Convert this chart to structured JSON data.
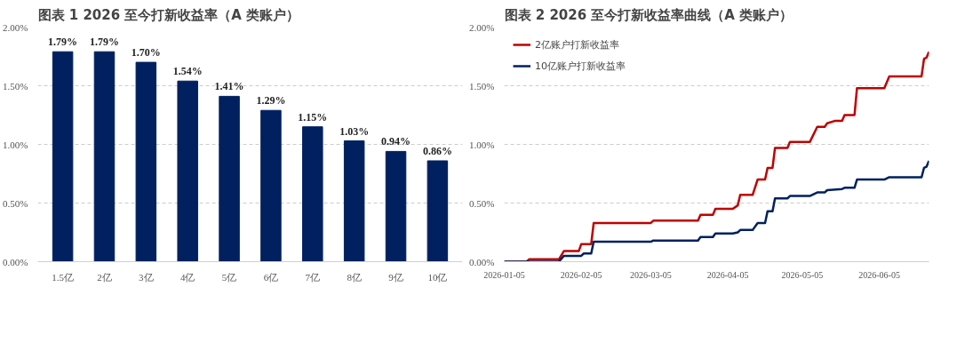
{
  "chart_data": [
    {
      "type": "bar",
      "title": "图表 1 2026 至今打新收益率（A 类账户）",
      "categories": [
        "1.5亿",
        "2亿",
        "3亿",
        "4亿",
        "5亿",
        "6亿",
        "7亿",
        "8亿",
        "9亿",
        "10亿"
      ],
      "color": "#002060",
      "values": [
        1.79,
        1.79,
        1.7,
        1.54,
        1.41,
        1.29,
        1.15,
        1.03,
        0.94,
        0.86
      ],
      "value_labels": [
        "1.79%",
        "1.79%",
        "1.70%",
        "1.54%",
        "1.41%",
        "1.29%",
        "1.15%",
        "1.03%",
        "0.94%",
        "0.86%"
      ],
      "ylim": [
        0,
        2
      ],
      "yticks": [
        {
          "value": 0,
          "label": "0.00%"
        },
        {
          "value": 0.5,
          "label": "0.50%"
        },
        {
          "value": 1,
          "label": "1.00%"
        },
        {
          "value": 1.5,
          "label": "1.50%"
        },
        {
          "value": 2,
          "label": "2.00%"
        }
      ],
      "grid": "y"
    },
    {
      "type": "line",
      "title": "图表 2 2026 至今打新收益率曲线（A 类账户）",
      "legend": "top left",
      "grid": "y",
      "line_style": "solid",
      "xlim": [
        "2026-01-05",
        "2026-06-25"
      ],
      "xticks": [
        "2026-01-05",
        "2026-02-05",
        "2026-03-05",
        "2026-04-05",
        "2026-05-05",
        "2026-06-05"
      ],
      "ylim": [
        0,
        2
      ],
      "yticks": [
        {
          "value": 0,
          "label": "0.00%"
        },
        {
          "value": 0.5,
          "label": "0.50%"
        },
        {
          "value": 1,
          "label": "1.00%"
        },
        {
          "value": 1.5,
          "label": "1.50%"
        },
        {
          "value": 2,
          "label": "2.00%"
        }
      ],
      "series": [
        {
          "name": "2亿账户打新收益率",
          "color": "#c00000",
          "x": [
            "2026-01-05",
            "2026-01-14",
            "2026-01-15",
            "2026-01-27",
            "2026-01-29",
            "2026-02-04",
            "2026-02-05",
            "2026-02-09",
            "2026-02-10",
            "2026-03-05",
            "2026-03-06",
            "2026-03-24",
            "2026-03-25",
            "2026-03-30",
            "2026-03-31",
            "2026-04-07",
            "2026-04-09",
            "2026-04-10",
            "2026-04-15",
            "2026-04-17",
            "2026-04-20",
            "2026-04-21",
            "2026-04-23",
            "2026-04-24",
            "2026-04-29",
            "2026-04-30",
            "2026-05-08",
            "2026-05-11",
            "2026-05-14",
            "2026-05-15",
            "2026-05-18",
            "2026-05-21",
            "2026-05-22",
            "2026-05-26",
            "2026-05-27",
            "2026-06-07",
            "2026-06-09",
            "2026-06-22",
            "2026-06-23",
            "2026-06-24",
            "2026-06-25"
          ],
          "values": [
            0,
            0,
            0.02,
            0.02,
            0.09,
            0.09,
            0.15,
            0.15,
            0.33,
            0.33,
            0.35,
            0.35,
            0.4,
            0.4,
            0.45,
            0.45,
            0.48,
            0.57,
            0.57,
            0.7,
            0.7,
            0.8,
            0.8,
            0.97,
            0.97,
            1.02,
            1.02,
            1.15,
            1.15,
            1.18,
            1.2,
            1.2,
            1.25,
            1.25,
            1.48,
            1.48,
            1.58,
            1.58,
            1.73,
            1.74,
            1.79
          ]
        },
        {
          "name": "10亿账户打新收益率",
          "color": "#002060",
          "x": [
            "2026-01-05",
            "2026-01-27",
            "2026-01-29",
            "2026-02-05",
            "2026-02-06",
            "2026-02-09",
            "2026-02-10",
            "2026-03-05",
            "2026-03-06",
            "2026-03-24",
            "2026-03-25",
            "2026-03-30",
            "2026-03-31",
            "2026-04-07",
            "2026-04-09",
            "2026-04-10",
            "2026-04-15",
            "2026-04-17",
            "2026-04-20",
            "2026-04-21",
            "2026-04-23",
            "2026-04-24",
            "2026-04-29",
            "2026-04-30",
            "2026-05-08",
            "2026-05-11",
            "2026-05-14",
            "2026-05-15",
            "2026-05-21",
            "2026-05-22",
            "2026-05-26",
            "2026-05-27",
            "2026-06-07",
            "2026-06-09",
            "2026-06-22",
            "2026-06-23",
            "2026-06-24",
            "2026-06-25"
          ],
          "values": [
            0,
            0,
            0.05,
            0.05,
            0.07,
            0.07,
            0.17,
            0.17,
            0.18,
            0.18,
            0.21,
            0.21,
            0.24,
            0.24,
            0.25,
            0.27,
            0.27,
            0.33,
            0.33,
            0.43,
            0.43,
            0.54,
            0.54,
            0.56,
            0.56,
            0.59,
            0.59,
            0.61,
            0.62,
            0.63,
            0.63,
            0.7,
            0.7,
            0.72,
            0.72,
            0.8,
            0.81,
            0.86
          ]
        }
      ]
    }
  ]
}
